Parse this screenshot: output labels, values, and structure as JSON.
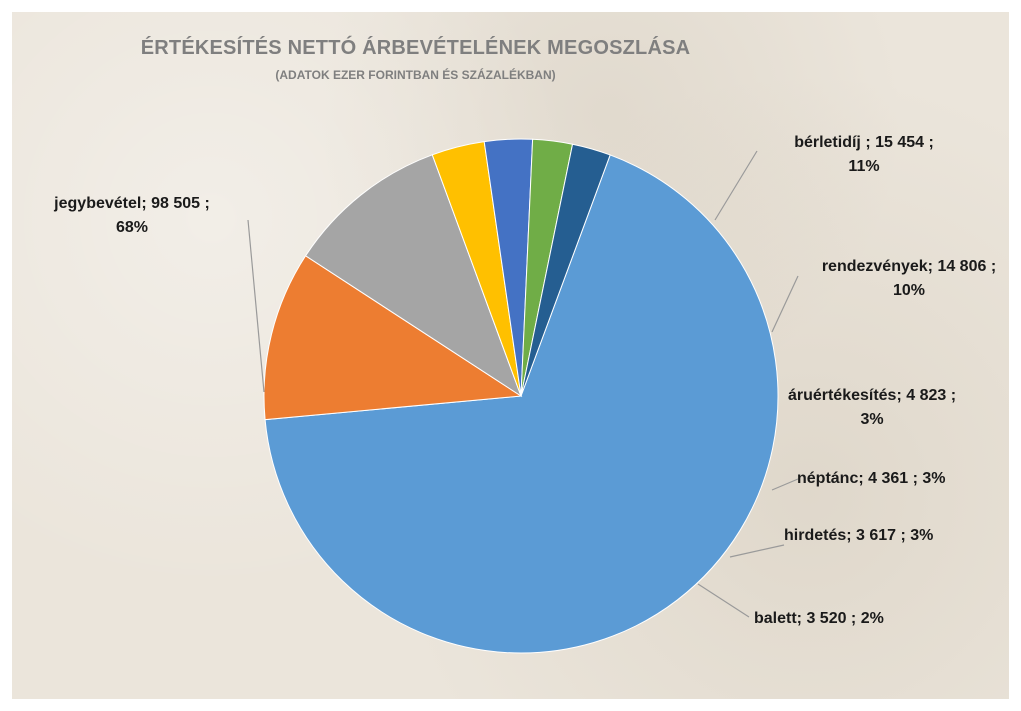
{
  "chart_data": {
    "type": "pie",
    "title": "ÉRTÉKESÍTÉS NETTÓ ÁRBEVÉTELÉNEK MEGOSZLÁSA",
    "subtitle": "(ADATOK EZER FORINTBAN ÉS SZÁZALÉKBAN)",
    "legend": "none",
    "slices": [
      {
        "name": "jegybevétel",
        "value": 98505,
        "percent": "68%",
        "color": "#5b9bd5",
        "label_lines": [
          "jegybevétel; 98 505 ;",
          "68%"
        ]
      },
      {
        "name": "bérletidíj",
        "value": 15454,
        "percent": "11%",
        "color": "#ed7d31",
        "label_lines": [
          "bérletidíj ; 15 454 ;",
          "11%"
        ]
      },
      {
        "name": "rendezvények",
        "value": 14806,
        "percent": "10%",
        "color": "#a5a5a5",
        "label_lines": [
          "rendezvények; 14 806 ;",
          "10%"
        ]
      },
      {
        "name": "áruértékesítés",
        "value": 4823,
        "percent": "3%",
        "color": "#ffc000",
        "label_lines": [
          "áruértékesítés; 4 823 ;",
          "3%"
        ]
      },
      {
        "name": "néptánc",
        "value": 4361,
        "percent": "3%",
        "color": "#4472c4",
        "label_lines": [
          "néptánc; 4 361 ; 3%"
        ]
      },
      {
        "name": "hirdetés",
        "value": 3617,
        "percent": "3%",
        "color": "#70ad47",
        "label_lines": [
          "hirdetés; 3 617 ; 3%"
        ]
      },
      {
        "name": "balett",
        "value": 3520,
        "percent": "2%",
        "color": "#255e91",
        "label_lines": [
          "balett; 3 520 ; 2%"
        ]
      }
    ]
  }
}
